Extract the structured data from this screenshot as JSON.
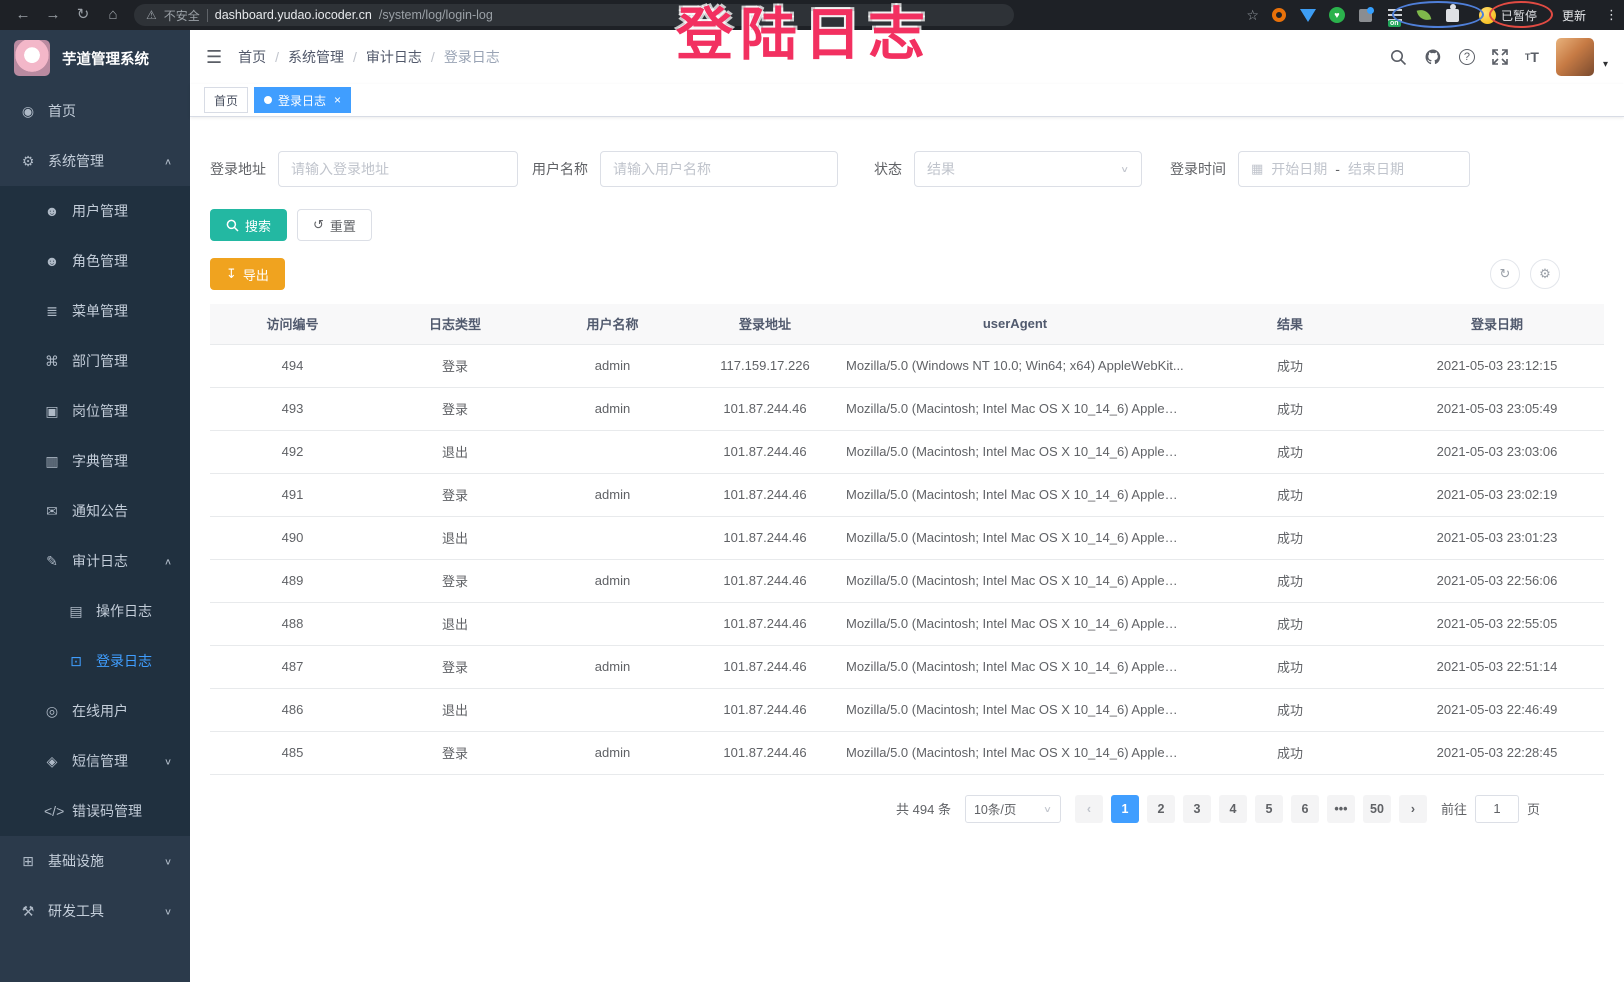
{
  "browser": {
    "security_label": "不安全",
    "url_host": "dashboard.yudao.iocoder.cn",
    "url_path": "/system/log/login-log",
    "paused_label": "已暂停",
    "update_label": "更新",
    "extension_on_badge": "on"
  },
  "annotation": {
    "text": "登陆日志",
    "color": "#f23060"
  },
  "sidebar": {
    "logo_title": "芋道管理系统",
    "items": [
      {
        "label": "首页",
        "icon": "globe-icon",
        "level": 1,
        "sub": false
      },
      {
        "label": "系统管理",
        "icon": "gear-icon",
        "level": 1,
        "sub": false,
        "arrow": "up"
      },
      {
        "label": "用户管理",
        "icon": "user-icon",
        "level": 2,
        "sub": true
      },
      {
        "label": "角色管理",
        "icon": "role-icon",
        "level": 2,
        "sub": true
      },
      {
        "label": "菜单管理",
        "icon": "menu-tree-icon",
        "level": 2,
        "sub": true
      },
      {
        "label": "部门管理",
        "icon": "dept-icon",
        "level": 2,
        "sub": true
      },
      {
        "label": "岗位管理",
        "icon": "post-icon",
        "level": 2,
        "sub": true
      },
      {
        "label": "字典管理",
        "icon": "dict-icon",
        "level": 2,
        "sub": true
      },
      {
        "label": "通知公告",
        "icon": "notice-icon",
        "level": 2,
        "sub": true
      },
      {
        "label": "审计日志",
        "icon": "audit-icon",
        "level": 2,
        "sub": true,
        "arrow": "up"
      },
      {
        "label": "操作日志",
        "icon": "operate-log-icon",
        "level": 3,
        "sub": true
      },
      {
        "label": "登录日志",
        "icon": "login-log-icon",
        "level": 3,
        "sub": true,
        "active": true
      },
      {
        "label": "在线用户",
        "icon": "online-user-icon",
        "level": 2,
        "sub": true
      },
      {
        "label": "短信管理",
        "icon": "sms-icon",
        "level": 2,
        "sub": true,
        "arrow": "down"
      },
      {
        "label": "错误码管理",
        "icon": "error-code-icon",
        "level": 2,
        "sub": true
      },
      {
        "label": "基础设施",
        "icon": "infra-icon",
        "level": 1,
        "sub": false,
        "arrow": "down"
      },
      {
        "label": "研发工具",
        "icon": "dev-tools-icon",
        "level": 1,
        "sub": false,
        "arrow": "down"
      }
    ]
  },
  "navbar": {
    "breadcrumb": [
      "首页",
      "系统管理",
      "审计日志",
      "登录日志"
    ]
  },
  "tabs": [
    {
      "label": "首页",
      "active": false
    },
    {
      "label": "登录日志",
      "active": true,
      "closable": true
    }
  ],
  "filters": {
    "login_address_label": "登录地址",
    "login_address_placeholder": "请输入登录地址",
    "username_label": "用户名称",
    "username_placeholder": "请输入用户名称",
    "status_label": "状态",
    "status_placeholder": "结果",
    "login_time_label": "登录时间",
    "date_start_placeholder": "开始日期",
    "date_separator": "-",
    "date_end_placeholder": "结束日期"
  },
  "toolbar": {
    "search_label": "搜索",
    "reset_label": "重置",
    "export_label": "导出"
  },
  "table": {
    "headers": [
      "访问编号",
      "日志类型",
      "用户名称",
      "登录地址",
      "userAgent",
      "结果",
      "登录日期"
    ],
    "rows": [
      [
        "494",
        "登录",
        "admin",
        "117.159.17.226",
        "Mozilla/5.0 (Windows NT 10.0; Win64; x64) AppleWebKit...",
        "成功",
        "2021-05-03 23:12:15"
      ],
      [
        "493",
        "登录",
        "admin",
        "101.87.244.46",
        "Mozilla/5.0 (Macintosh; Intel Mac OS X 10_14_6) AppleWe...",
        "成功",
        "2021-05-03 23:05:49"
      ],
      [
        "492",
        "退出",
        "",
        "101.87.244.46",
        "Mozilla/5.0 (Macintosh; Intel Mac OS X 10_14_6) AppleWe...",
        "成功",
        "2021-05-03 23:03:06"
      ],
      [
        "491",
        "登录",
        "admin",
        "101.87.244.46",
        "Mozilla/5.0 (Macintosh; Intel Mac OS X 10_14_6) AppleWe...",
        "成功",
        "2021-05-03 23:02:19"
      ],
      [
        "490",
        "退出",
        "",
        "101.87.244.46",
        "Mozilla/5.0 (Macintosh; Intel Mac OS X 10_14_6) AppleWe...",
        "成功",
        "2021-05-03 23:01:23"
      ],
      [
        "489",
        "登录",
        "admin",
        "101.87.244.46",
        "Mozilla/5.0 (Macintosh; Intel Mac OS X 10_14_6) AppleWe...",
        "成功",
        "2021-05-03 22:56:06"
      ],
      [
        "488",
        "退出",
        "",
        "101.87.244.46",
        "Mozilla/5.0 (Macintosh; Intel Mac OS X 10_14_6) AppleWe...",
        "成功",
        "2021-05-03 22:55:05"
      ],
      [
        "487",
        "登录",
        "admin",
        "101.87.244.46",
        "Mozilla/5.0 (Macintosh; Intel Mac OS X 10_14_6) AppleWe...",
        "成功",
        "2021-05-03 22:51:14"
      ],
      [
        "486",
        "退出",
        "",
        "101.87.244.46",
        "Mozilla/5.0 (Macintosh; Intel Mac OS X 10_14_6) AppleWe...",
        "成功",
        "2021-05-03 22:46:49"
      ],
      [
        "485",
        "登录",
        "admin",
        "101.87.244.46",
        "Mozilla/5.0 (Macintosh; Intel Mac OS X 10_14_6) AppleWe...",
        "成功",
        "2021-05-03 22:28:45"
      ]
    ]
  },
  "pagination": {
    "total_label": "共 494 条",
    "page_size_label": "10条/页",
    "pages": [
      "1",
      "2",
      "3",
      "4",
      "5",
      "6",
      "•••",
      "50"
    ],
    "active_page": "1",
    "goto_label": "前往",
    "goto_value": "1",
    "page_unit": "页"
  }
}
